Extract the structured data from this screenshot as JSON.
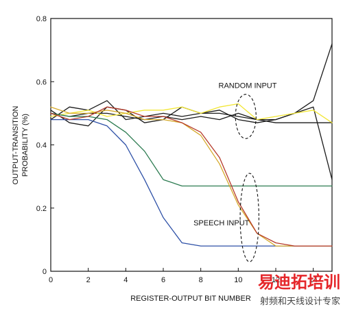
{
  "chart_data": {
    "type": "line",
    "title": "",
    "xlabel": "REGISTER-OUTPUT BIT NUMBER",
    "ylabel_line1": "OUTPUT-TRANSITION",
    "ylabel_line2": "PROBABILITY (%)",
    "xlim": [
      0,
      15
    ],
    "ylim": [
      0,
      0.8
    ],
    "x_ticks": [
      0,
      2,
      4,
      6,
      8,
      10,
      12,
      14
    ],
    "x_tick_labels": [
      "0",
      "2",
      "4",
      "6",
      "8",
      "10",
      "12",
      "14"
    ],
    "y_ticks": [
      0,
      0.2,
      0.4,
      0.6,
      0.8
    ],
    "y_tick_labels": [
      "0",
      "0.2",
      "0.4",
      "0.6",
      "0.8"
    ],
    "grid": false,
    "x": [
      0,
      1,
      2,
      3,
      4,
      5,
      6,
      7,
      8,
      9,
      10,
      11,
      12,
      13,
      14,
      15
    ],
    "series": [
      {
        "color": "#1a1a1a",
        "values": [
          0.48,
          0.52,
          0.51,
          0.54,
          0.48,
          0.49,
          0.5,
          0.49,
          0.5,
          0.51,
          0.48,
          0.47,
          0.48,
          0.5,
          0.54,
          0.72
        ]
      },
      {
        "color": "#1a1a1a",
        "values": [
          0.51,
          0.47,
          0.46,
          0.52,
          0.51,
          0.47,
          0.48,
          0.52,
          0.5,
          0.5,
          0.49,
          0.48,
          0.47,
          0.47,
          0.47,
          0.47
        ]
      },
      {
        "color": "#1a1a1a",
        "values": [
          0.5,
          0.49,
          0.5,
          0.5,
          0.49,
          0.48,
          0.49,
          0.48,
          0.49,
          0.48,
          0.5,
          0.48,
          0.48,
          0.5,
          0.52,
          0.29
        ]
      },
      {
        "color": "#f2e634",
        "values": [
          0.49,
          0.5,
          0.51,
          0.49,
          0.5,
          0.51,
          0.51,
          0.52,
          0.5,
          0.52,
          0.53,
          0.48,
          0.49,
          0.5,
          0.51,
          0.47
        ]
      },
      {
        "color": "#2c4fa6",
        "values": [
          0.48,
          0.48,
          0.48,
          0.46,
          0.4,
          0.29,
          0.17,
          0.09,
          0.08,
          0.08,
          0.08,
          0.08,
          0.08,
          0.08,
          0.08,
          0.08
        ]
      },
      {
        "color": "#2a7a4f",
        "values": [
          0.5,
          0.49,
          0.49,
          0.48,
          0.44,
          0.38,
          0.29,
          0.27,
          0.27,
          0.27,
          0.27,
          0.27,
          0.27,
          0.27,
          0.27,
          0.27
        ]
      },
      {
        "color": "#d5a92a",
        "values": [
          0.52,
          0.5,
          0.5,
          0.51,
          0.5,
          0.48,
          0.48,
          0.47,
          0.43,
          0.34,
          0.21,
          0.12,
          0.08,
          0.08,
          0.08,
          0.08
        ]
      },
      {
        "color": "#b53a2a",
        "values": [
          0.5,
          0.48,
          0.49,
          0.52,
          0.51,
          0.49,
          0.49,
          0.47,
          0.44,
          0.36,
          0.22,
          0.12,
          0.09,
          0.08,
          0.08,
          0.08
        ]
      }
    ],
    "annotations": [
      {
        "text": "RANDOM INPUT",
        "x": 10.5,
        "y": 0.58
      },
      {
        "text": "SPEECH INPUT",
        "x": 9.1,
        "y": 0.145
      }
    ],
    "ellipses": [
      {
        "cx": 10.4,
        "cy": 0.49,
        "rx": 0.55,
        "ry": 0.07
      },
      {
        "cx": 10.6,
        "cy": 0.17,
        "rx": 0.5,
        "ry": 0.14
      }
    ]
  },
  "watermark": {
    "line1": "易迪拓培训",
    "line2": "射频和天线设计专家",
    "color1": "#e5262a"
  }
}
